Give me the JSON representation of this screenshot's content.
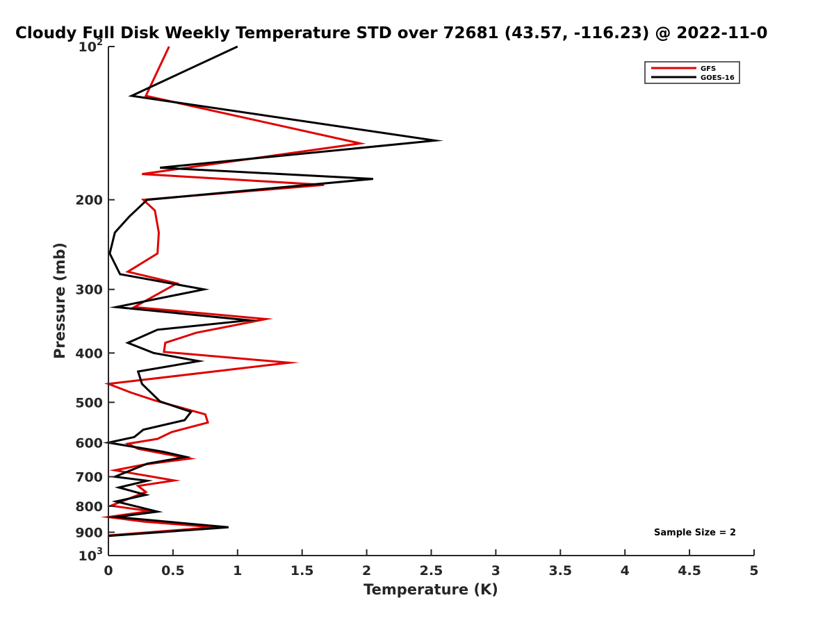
{
  "chart_data": {
    "type": "line",
    "title": "Cloudy Full Disk Weekly Temperature STD over 72681 (43.57, -116.23) @ 2022-11-0",
    "xlabel": "Temperature (K)",
    "ylabel": "Pressure (mb)",
    "xlim": [
      0,
      5
    ],
    "ylim": [
      100,
      1000
    ],
    "yscale": "log",
    "y_reversed": true,
    "grid": false,
    "legend_position": "top-right",
    "x_ticks": [
      0,
      0.5,
      1,
      1.5,
      2,
      2.5,
      3,
      3.5,
      4,
      4.5,
      5
    ],
    "x_tick_labels": [
      "0",
      "0.5",
      "1",
      "1.5",
      "2",
      "2.5",
      "3",
      "3.5",
      "4",
      "4.5",
      "5"
    ],
    "y_ticks": [
      200,
      300,
      400,
      500,
      600,
      700,
      800,
      900
    ],
    "y_tick_labels": [
      "200",
      "300",
      "400",
      "500",
      "600",
      "700",
      "800",
      "900"
    ],
    "y_power_ticks": [
      {
        "value": 100,
        "base": "10",
        "exp": "2"
      },
      {
        "value": 1000,
        "base": "10",
        "exp": "3"
      }
    ],
    "annotation": "Sample Size = 2",
    "series": [
      {
        "name": "GFS",
        "color": "#e00000",
        "x": [
          0.47,
          0.29,
          1.95,
          0.26,
          1.67,
          0.27,
          0.36,
          0.39,
          0.38,
          0.15,
          0.53,
          0.2,
          1.22,
          0.68,
          0.44,
          0.43,
          1.4,
          0.0,
          0.17,
          0.35,
          0.75,
          0.77,
          0.49,
          0.38,
          0.15,
          0.23,
          0.63,
          0.27,
          0.05,
          0.51,
          0.23,
          0.29,
          0.02,
          0.32,
          0.0,
          0.28,
          0.82,
          0.0
        ],
        "y": [
          100,
          125,
          155,
          178,
          187,
          200,
          210,
          232,
          255,
          277,
          292,
          325,
          343,
          365,
          382,
          398,
          418,
          460,
          478,
          495,
          528,
          548,
          572,
          590,
          603,
          617,
          645,
          663,
          680,
          712,
          730,
          750,
          798,
          818,
          840,
          858,
          880,
          913
        ]
      },
      {
        "name": "GOES-16",
        "color": "#000000",
        "x": [
          1.0,
          0.18,
          2.53,
          0.4,
          2.05,
          0.3,
          0.16,
          0.05,
          0.01,
          0.09,
          0.74,
          0.06,
          1.09,
          0.38,
          0.15,
          0.35,
          0.7,
          0.23,
          0.26,
          0.4,
          0.64,
          0.59,
          0.27,
          0.2,
          0.0,
          0.42,
          0.6,
          0.3,
          0.05,
          0.3,
          0.08,
          0.29,
          0.06,
          0.38,
          0.06,
          0.93,
          0.0
        ],
        "y": [
          100,
          125,
          153,
          173,
          182,
          200,
          216,
          232,
          255,
          280,
          300,
          325,
          345,
          360,
          382,
          400,
          415,
          435,
          460,
          498,
          522,
          542,
          566,
          585,
          600,
          625,
          640,
          660,
          700,
          713,
          735,
          760,
          783,
          820,
          840,
          880,
          915
        ]
      }
    ]
  }
}
